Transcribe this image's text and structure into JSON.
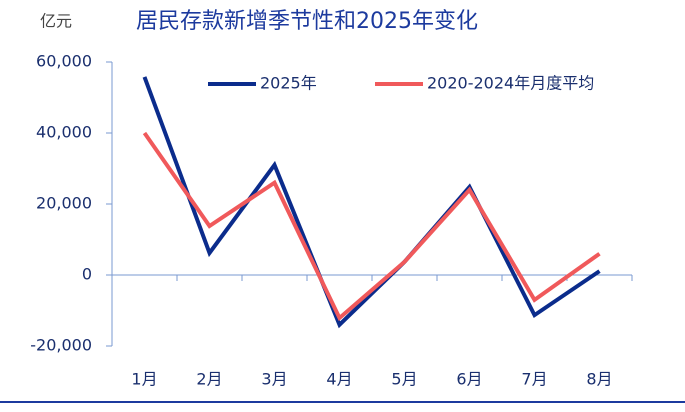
{
  "chart_data": {
    "type": "line",
    "title": "居民存款新增季节性和2025年变化",
    "unit_label": "亿元",
    "categories": [
      "1月",
      "2月",
      "3月",
      "4月",
      "5月",
      "6月",
      "7月",
      "8月"
    ],
    "series": [
      {
        "name": "2025年",
        "color": "#0b2c8c",
        "values": [
          55800,
          6200,
          31000,
          -14000,
          3700,
          24800,
          -11300,
          1100
        ]
      },
      {
        "name": "2020-2024年月度平均",
        "color": "#f0595b",
        "values": [
          40000,
          13800,
          26000,
          -12100,
          3700,
          24000,
          -7000,
          6000
        ]
      }
    ],
    "ylim": [
      -20000,
      60000
    ],
    "yticks": [
      {
        "value": -20000,
        "label": "-20,000"
      },
      0,
      {
        "value": 20000,
        "label": "20,000"
      },
      {
        "value": 40000,
        "label": "40,000"
      },
      {
        "value": 60000,
        "label": "60,000"
      }
    ],
    "legend": "top"
  }
}
